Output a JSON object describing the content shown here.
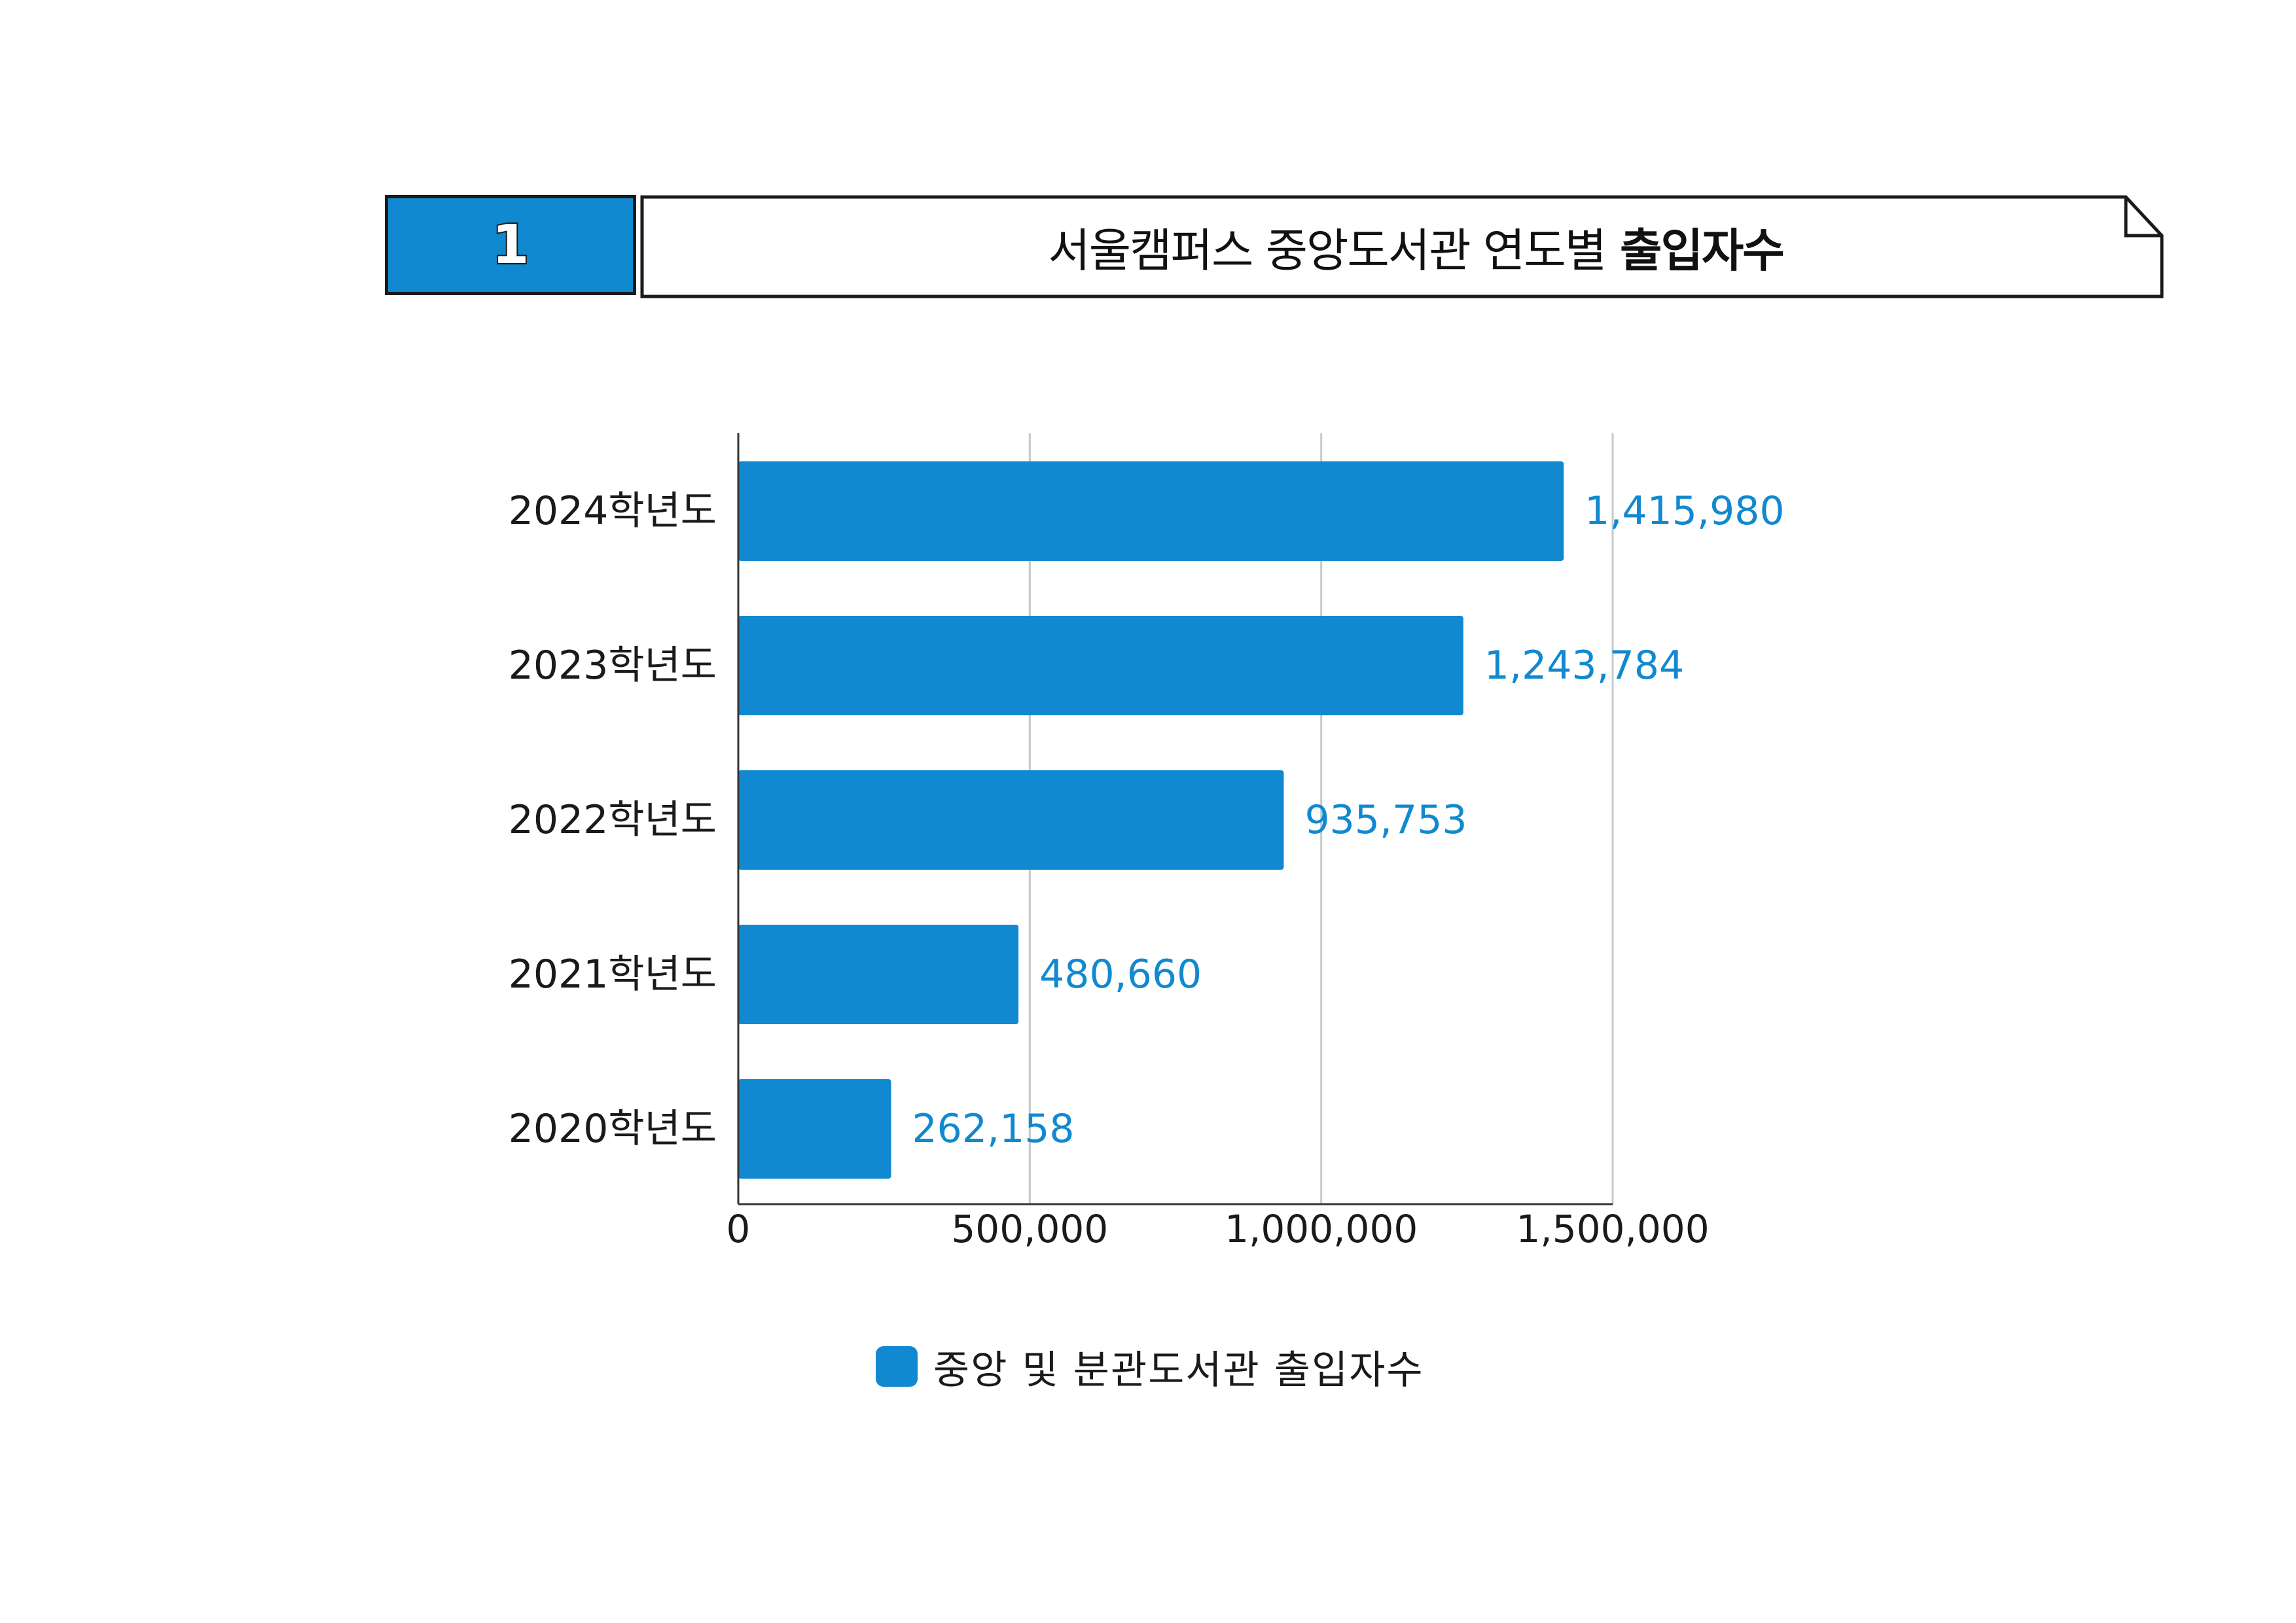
{
  "header": {
    "number": "1",
    "title_regular": "서울캠퍼스 중앙도서관 연도별",
    "title_bold": "출입자수"
  },
  "chart_data": {
    "type": "bar",
    "orientation": "horizontal",
    "categories": [
      "2024학년도",
      "2023학년도",
      "2022학년도",
      "2021학년도",
      "2020학년도"
    ],
    "values": [
      1415980,
      1243784,
      935753,
      480660,
      262158
    ],
    "value_labels": [
      "1,415,980",
      "1,243,784",
      "935,753",
      "480,660",
      "262,158"
    ],
    "xlim": [
      0,
      1500000
    ],
    "xticks": [
      0,
      500000,
      1000000,
      1500000
    ],
    "xtick_labels": [
      "0",
      "500,000",
      "1,000,000",
      "1,500,000"
    ],
    "grid": true,
    "legend": [
      "중앙 및 분관도서관 출입자수"
    ],
    "legend_position": "bottom",
    "colors": {
      "bar": "#1189d0",
      "value_label": "#1189d0",
      "grid": "#c8c8c8",
      "axis": "#333333"
    }
  }
}
